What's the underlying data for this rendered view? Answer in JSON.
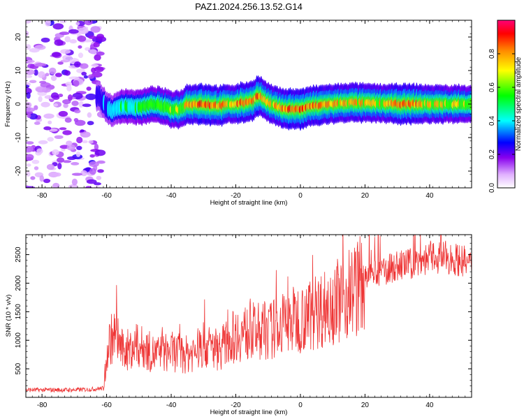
{
  "title": "PAZ1.2024.256.13.52.G14",
  "chart_data": [
    {
      "type": "heatmap",
      "xlabel": "Height of straight line (km)",
      "ylabel": "Frequency (Hz)",
      "xlim": [
        -85,
        53
      ],
      "ylim": [
        -25,
        25
      ],
      "xticks": [
        -80,
        -60,
        -40,
        -20,
        0,
        20,
        40
      ],
      "yticks": [
        20,
        10,
        0,
        -10,
        -20
      ],
      "colorbar": {
        "label": "Normalized spectral amplitude",
        "range": [
          0,
          1
        ],
        "ticks": [
          0.0,
          0.2,
          0.4,
          0.6,
          0.8
        ],
        "colors": [
          "#ffffff",
          "#cc55ff",
          "#7700ee",
          "#0000ff",
          "#00ffff",
          "#00ff00",
          "#ffff00",
          "#ff8800",
          "#ff0000",
          "#ff0077"
        ]
      },
      "ridge": {
        "x": [
          -63,
          -62,
          -60,
          -58,
          -55,
          -50,
          -45,
          -40,
          -37,
          -35,
          -30,
          -25,
          -22,
          -20,
          -17,
          -15,
          -13,
          -12,
          -10,
          -8,
          -6,
          -4,
          -2,
          0,
          2,
          4,
          6,
          8,
          10,
          15,
          20,
          25,
          30,
          35,
          40,
          45,
          50,
          53
        ],
        "freq": [
          2.5,
          2.0,
          -1.0,
          -2.0,
          -0.5,
          -1.0,
          0.0,
          -1.5,
          -1.5,
          0.0,
          0.0,
          -0.5,
          0.0,
          0.0,
          0.5,
          1.0,
          2.5,
          2.0,
          0.5,
          -0.5,
          -1.0,
          -1.5,
          -1.5,
          -1.5,
          -1.0,
          -0.5,
          -0.5,
          0.0,
          0.0,
          0.5,
          0.3,
          0.2,
          0.0,
          0.0,
          0.0,
          0.0,
          0.0,
          0.2
        ],
        "amplitude": [
          0.3,
          0.35,
          0.4,
          0.45,
          0.55,
          0.6,
          0.65,
          0.7,
          0.75,
          0.85,
          0.9,
          0.85,
          0.8,
          0.85,
          0.9,
          0.85,
          0.9,
          0.8,
          0.75,
          0.8,
          0.85,
          0.9,
          0.9,
          0.9,
          0.85,
          0.85,
          0.85,
          0.85,
          0.8,
          0.8,
          0.8,
          0.8,
          0.85,
          0.85,
          0.8,
          0.75,
          0.75,
          0.7
        ]
      }
    },
    {
      "type": "line",
      "xlabel": "Height of straight line (km)",
      "ylabel": "SNR (10 * v/v)",
      "xlim": [
        -85,
        53
      ],
      "ylim": [
        0,
        2850
      ],
      "xticks": [
        -80,
        -60,
        -40,
        -20,
        0,
        20,
        40
      ],
      "yticks": [
        500,
        1000,
        1500,
        2000,
        2500
      ],
      "color": "#ee3333",
      "series": [
        {
          "x": [
            -85,
            -80,
            -75,
            -70,
            -65,
            -61,
            -60,
            -59,
            -57,
            -55,
            -50,
            -45,
            -40,
            -35,
            -30,
            -25,
            -20,
            -15,
            -10,
            -5,
            0,
            5,
            10,
            15,
            20,
            25,
            30,
            35,
            40,
            45,
            50,
            53
          ],
          "y": [
            130,
            130,
            130,
            130,
            140,
            160,
            700,
            1000,
            1100,
            800,
            900,
            750,
            800,
            750,
            900,
            850,
            1100,
            1150,
            1150,
            1300,
            1400,
            1500,
            1650,
            1800,
            2050,
            2200,
            2300,
            2350,
            2450,
            2450,
            2400,
            2300
          ]
        }
      ]
    }
  ]
}
